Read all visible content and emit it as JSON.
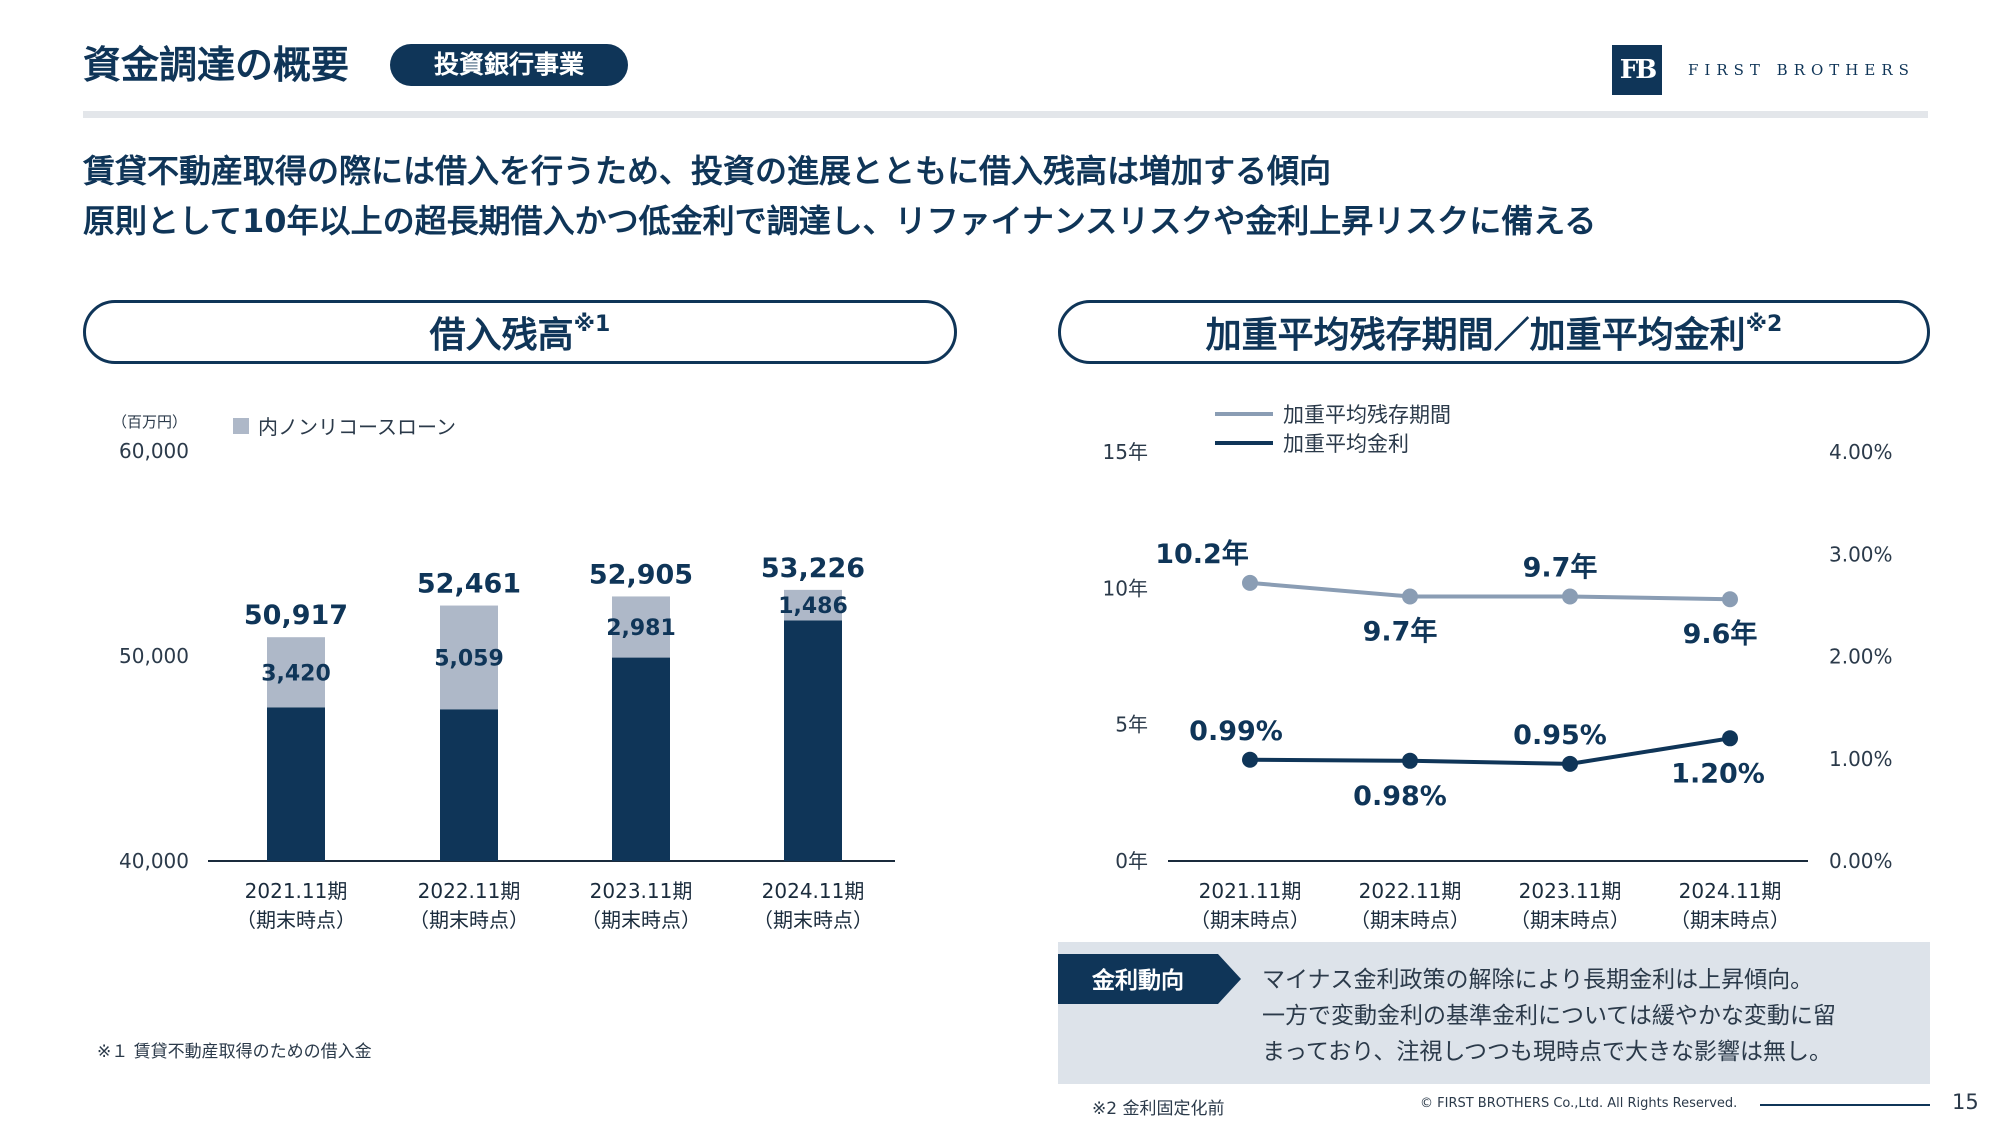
{
  "header": {
    "title": "資金調達の概要",
    "badge": "投資銀行事業",
    "logo_mark": "FB",
    "logo_text": "FIRST BROTHERS"
  },
  "lead": {
    "line1": "賃貸不動産取得の際には借入を行うため、投資の進展とともに借入残高は増加する傾向",
    "line2": "原則として10年以上の超長期借入かつ低金利で調達し、リファイナンスリスクや金利上昇リスクに備える"
  },
  "left_panel": {
    "title": "借入残高",
    "title_sup": "※1"
  },
  "right_panel": {
    "title": "加重平均残存期間／加重平均金利",
    "title_sup": "※2"
  },
  "chart_data": [
    {
      "type": "bar",
      "unit_label": "（百万円）",
      "legend": [
        "内ノンリコースローン"
      ],
      "y_ticks": [
        "60,000",
        "50,000",
        "40,000"
      ],
      "ylim": [
        40000,
        60000
      ],
      "categories": [
        "2021.11期",
        "2022.11期",
        "2023.11期",
        "2024.11期"
      ],
      "category_sub": "（期末時点）",
      "totals": [
        50917,
        52461,
        52905,
        53226
      ],
      "total_labels": [
        "50,917",
        "52,461",
        "52,905",
        "53,226"
      ],
      "series": [
        {
          "name": "内ノンリコースローン",
          "values": [
            3420,
            5059,
            2981,
            1486
          ],
          "labels": [
            "3,420",
            "5,059",
            "2,981",
            "1,486"
          ]
        }
      ],
      "colors": {
        "total": "#0f3558",
        "nonrecourse": "#aeb8c8"
      }
    },
    {
      "type": "line",
      "categories": [
        "2021.11期",
        "2022.11期",
        "2023.11期",
        "2024.11期"
      ],
      "category_sub": "（期末時点）",
      "y_left_ticks": [
        "15年",
        "10年",
        "5年",
        "0年"
      ],
      "y_left_lim": [
        0,
        15
      ],
      "y_right_ticks": [
        "4.00%",
        "3.00%",
        "2.00%",
        "1.00%",
        "0.00%"
      ],
      "y_right_lim": [
        0,
        4
      ],
      "series": [
        {
          "name": "加重平均残存期間",
          "axis": "left",
          "values": [
            10.2,
            9.7,
            9.7,
            9.6
          ],
          "labels": [
            "10.2年",
            "9.7年",
            "9.7年",
            "9.6年"
          ],
          "color": "#8a9db4"
        },
        {
          "name": "加重平均金利",
          "axis": "right",
          "values": [
            0.99,
            0.98,
            0.95,
            1.2
          ],
          "labels": [
            "0.99%",
            "0.98%",
            "0.95%",
            "1.20%"
          ],
          "color": "#0f3558"
        }
      ]
    }
  ],
  "rate_trend": {
    "tag": "金利動向",
    "lines": [
      "マイナス金利政策の解除により長期金利は上昇傾向。",
      "一方で変動金利の基準金利については緩やかな変動に留",
      "まっており、注視しつつも現時点で大きな影響は無し。"
    ]
  },
  "footnotes": {
    "note1": "※１ 賃貸不動産取得のための借入金",
    "note2": "※2 金利固定化前"
  },
  "footer": {
    "copyright": "© FIRST BROTHERS Co.,Ltd. All Rights Reserved.",
    "page": "15"
  }
}
